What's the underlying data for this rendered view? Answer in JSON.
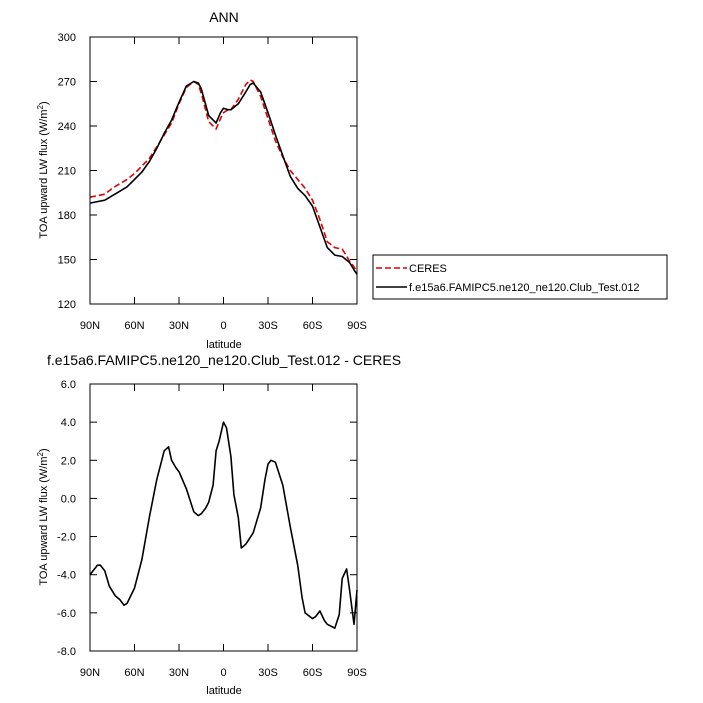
{
  "chart_data": [
    {
      "type": "line",
      "title": "ANN",
      "xlabel": "latitude",
      "ylabel": "TOA upward LW flux",
      "ylabel_unit_base": "W/m",
      "ylabel_unit_sup": "2",
      "xlim": [
        90,
        -90
      ],
      "ylim": [
        120,
        300
      ],
      "xticks": [
        90,
        60,
        30,
        0,
        -30,
        -60,
        -90
      ],
      "xtick_labels": [
        "90N",
        "60N",
        "30N",
        "0",
        "30S",
        "60S",
        "90S"
      ],
      "yticks": [
        120,
        150,
        180,
        210,
        240,
        270,
        300
      ],
      "ytick_labels": [
        "120",
        "150",
        "180",
        "210",
        "240",
        "270",
        "300"
      ],
      "legend": {
        "position": "right"
      },
      "series": [
        {
          "name": "CERES",
          "color": "#e00000",
          "dash": true,
          "x": [
            90,
            85,
            80,
            75,
            70,
            65,
            60,
            55,
            50,
            45,
            40,
            35,
            30,
            25,
            20,
            17,
            15,
            10,
            5,
            2,
            0,
            -3,
            -5,
            -10,
            -15,
            -18,
            -20,
            -25,
            -30,
            -35,
            -40,
            -45,
            -50,
            -55,
            -60,
            -65,
            -70,
            -75,
            -80,
            -85,
            -88,
            -90
          ],
          "y": [
            192,
            193,
            194,
            198,
            201,
            204,
            208,
            213,
            218,
            226,
            234,
            242,
            255,
            266,
            270,
            268,
            262,
            243,
            238,
            245,
            249,
            251,
            251,
            258,
            268,
            271,
            270,
            260,
            245,
            230,
            219,
            210,
            204,
            198,
            190,
            177,
            162,
            158,
            157,
            149,
            145,
            142
          ]
        },
        {
          "name": "f.e15a6.FAMIPC5.ne120_ne120.Club_Test.012",
          "color": "#000000",
          "dash": false,
          "x": [
            90,
            85,
            80,
            75,
            70,
            65,
            60,
            55,
            50,
            45,
            40,
            35,
            30,
            25,
            20,
            17,
            15,
            10,
            5,
            2,
            0,
            -3,
            -5,
            -10,
            -15,
            -18,
            -20,
            -25,
            -30,
            -35,
            -40,
            -45,
            -50,
            -55,
            -60,
            -65,
            -70,
            -75,
            -80,
            -85,
            -88,
            -90
          ],
          "y": [
            188,
            189,
            190,
            193,
            196,
            199,
            204,
            209,
            216,
            225,
            235,
            244,
            256,
            267,
            270,
            269,
            265,
            247,
            242,
            249,
            252,
            251,
            251,
            255,
            263,
            268,
            269,
            263,
            249,
            234,
            220,
            206,
            198,
            193,
            186,
            172,
            158,
            153,
            152,
            148,
            143,
            140
          ]
        }
      ]
    },
    {
      "type": "line",
      "title": "f.e15a6.FAMIPC5.ne120_ne120.Club_Test.012 - CERES",
      "xlabel": "latitude",
      "ylabel": "TOA upward LW flux",
      "ylabel_unit_base": "W/m",
      "ylabel_unit_sup": "2",
      "xlim": [
        90,
        -90
      ],
      "ylim": [
        -8,
        6
      ],
      "xticks": [
        90,
        60,
        30,
        0,
        -30,
        -60,
        -90
      ],
      "xtick_labels": [
        "90N",
        "60N",
        "30N",
        "0",
        "30S",
        "60S",
        "90S"
      ],
      "yticks": [
        -8,
        -6,
        -4,
        -2,
        0,
        2,
        4,
        6
      ],
      "ytick_labels": [
        "-8.0",
        "-6.0",
        "-4.0",
        "-2.0",
        "0.0",
        "2.0",
        "4.0",
        "6.0"
      ],
      "series": [
        {
          "color": "#000000",
          "x": [
            90,
            85,
            83,
            80,
            77,
            73,
            70,
            67,
            65,
            60,
            55,
            50,
            45,
            40,
            37,
            35,
            32,
            30,
            25,
            20,
            17,
            15,
            12,
            10,
            7,
            5,
            3,
            0,
            -2,
            -5,
            -7,
            -10,
            -12,
            -15,
            -20,
            -25,
            -28,
            -30,
            -32,
            -35,
            -40,
            -45,
            -50,
            -53,
            -55,
            -60,
            -62,
            -65,
            -68,
            -70,
            -75,
            -78,
            -80,
            -83,
            -85,
            -88,
            -90
          ],
          "y": [
            -4.0,
            -3.5,
            -3.5,
            -3.8,
            -4.6,
            -5.1,
            -5.3,
            -5.6,
            -5.5,
            -4.7,
            -3.2,
            -1.0,
            1.0,
            2.5,
            2.7,
            2.0,
            1.6,
            1.4,
            0.5,
            -0.7,
            -0.9,
            -0.8,
            -0.5,
            -0.2,
            0.7,
            2.5,
            3.0,
            4.0,
            3.7,
            2.2,
            0.2,
            -1.0,
            -2.6,
            -2.4,
            -1.8,
            -0.5,
            1.0,
            1.8,
            2.0,
            1.9,
            0.7,
            -1.5,
            -3.5,
            -5.2,
            -6.0,
            -6.3,
            -6.2,
            -5.9,
            -6.4,
            -6.6,
            -6.8,
            -6.1,
            -4.2,
            -3.7,
            -4.8,
            -6.6,
            -4.8
          ]
        }
      ]
    }
  ]
}
